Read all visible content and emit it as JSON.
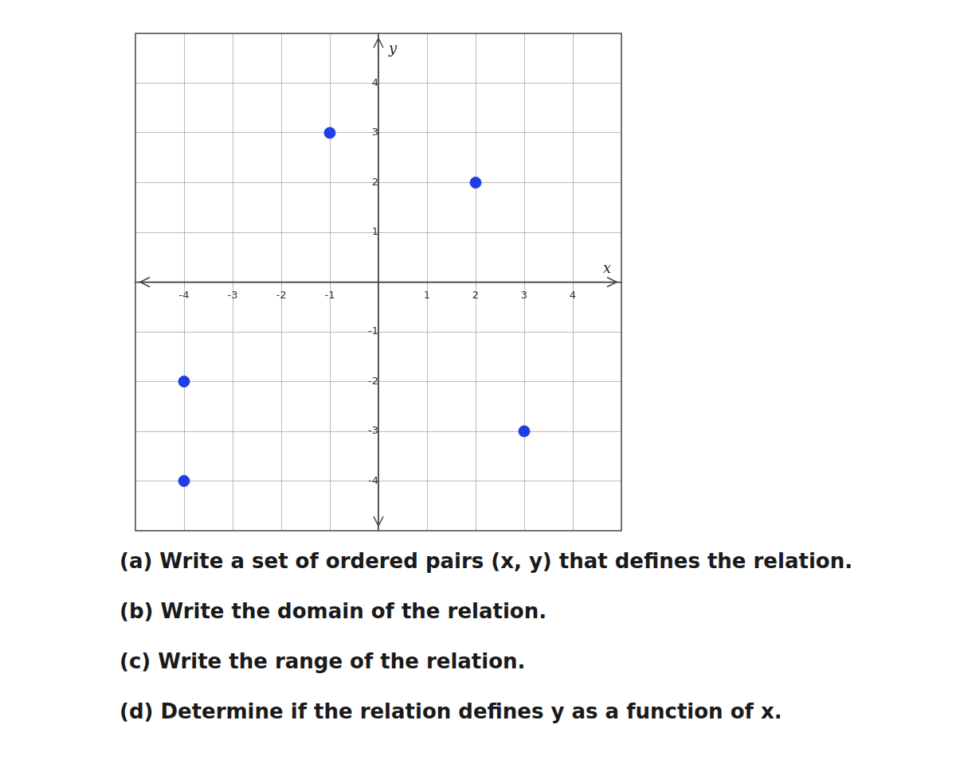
{
  "chart_data": {
    "type": "scatter",
    "x": [
      -1,
      2,
      -4,
      -4,
      3
    ],
    "values": [
      3,
      2,
      -2,
      -4,
      -3
    ],
    "color": "#1f3fe6",
    "marker": "circle",
    "xlabel": "x",
    "ylabel": "y",
    "xlim": [
      -5,
      5
    ],
    "ylim": [
      -5,
      5
    ],
    "xticks": [
      -4,
      -3,
      -2,
      -1,
      1,
      2,
      3,
      4
    ],
    "yticks": [
      -4,
      -3,
      -2,
      -1,
      1,
      2,
      3,
      4
    ],
    "grid": true
  },
  "questions": [
    "(a) Write a set of ordered pairs (x, y) that defines the relation.",
    "(b) Write the domain of the relation.",
    "(c) Write the range of the relation.",
    "(d) Determine if the relation defines y as a function of x."
  ]
}
